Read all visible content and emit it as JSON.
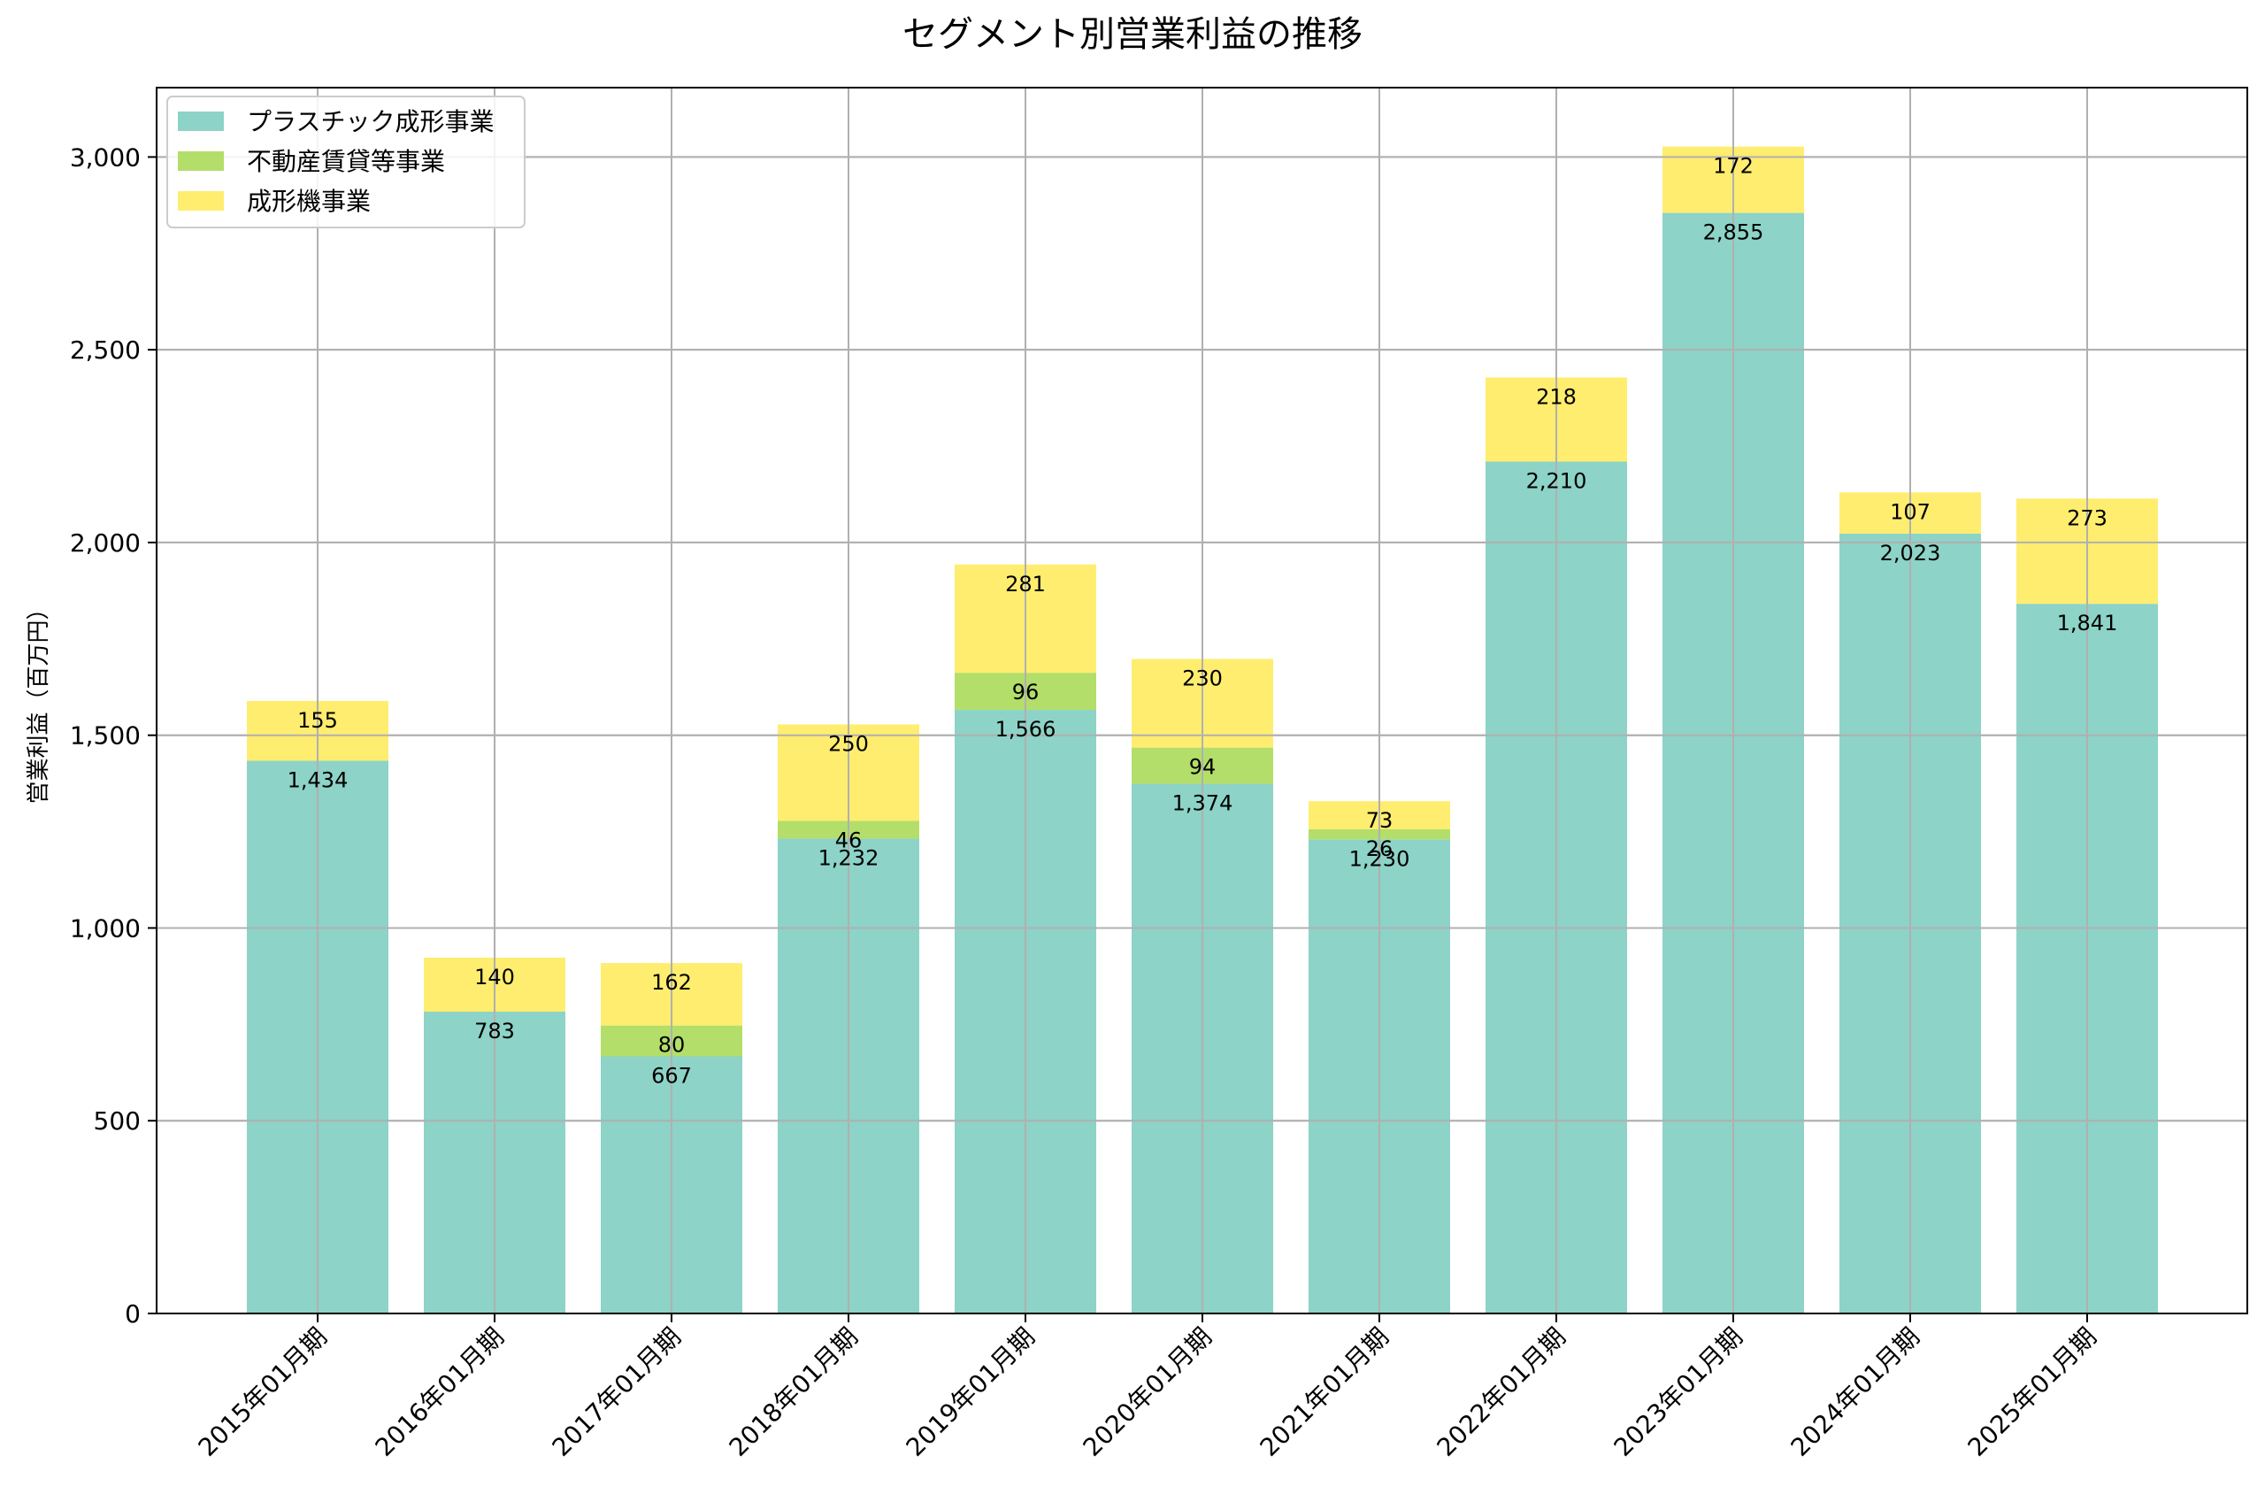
{
  "chart_data": {
    "type": "bar",
    "stacked": true,
    "title": "セグメント別営業利益の推移",
    "xlabel": "",
    "ylabel": "営業利益（百万円）",
    "ylim": [
      0,
      3180
    ],
    "yticks": [
      0,
      500,
      1000,
      1500,
      2000,
      2500,
      3000
    ],
    "ytick_labels": [
      "0",
      "500",
      "1,000",
      "1,500",
      "2,000",
      "2,500",
      "3,000"
    ],
    "grid": true,
    "legend_position": "top-left",
    "categories": [
      "2015年01月期",
      "2016年01月期",
      "2017年01月期",
      "2018年01月期",
      "2019年01月期",
      "2020年01月期",
      "2021年01月期",
      "2022年01月期",
      "2023年01月期",
      "2024年01月期",
      "2025年01月期"
    ],
    "series": [
      {
        "name": "プラスチック成形事業",
        "color": "#8DD3C7",
        "values": [
          1434,
          783,
          667,
          1232,
          1566,
          1374,
          1230,
          2210,
          2855,
          2023,
          1841
        ],
        "labels": [
          "1,434",
          "783",
          "667",
          "1,232",
          "1,566",
          "1,374",
          "1,230",
          "2,210",
          "2,855",
          "2,023",
          "1,841"
        ]
      },
      {
        "name": "不動産賃貸等事業",
        "color": "#B3DE69",
        "values": [
          0,
          0,
          80,
          46,
          96,
          94,
          26,
          0,
          0,
          0,
          0
        ],
        "labels": [
          "",
          "",
          "80",
          "46",
          "96",
          "94",
          "26",
          "",
          "",
          "",
          ""
        ]
      },
      {
        "name": "成形機事業",
        "color": "#FFED6F",
        "values": [
          155,
          140,
          162,
          250,
          281,
          230,
          73,
          218,
          172,
          107,
          273
        ],
        "labels": [
          "155",
          "140",
          "162",
          "250",
          "281",
          "230",
          "73",
          "218",
          "172",
          "107",
          "273"
        ]
      }
    ]
  }
}
